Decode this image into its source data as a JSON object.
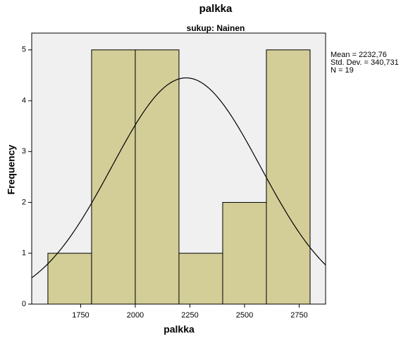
{
  "chart_data": {
    "type": "histogram",
    "title": "palkka",
    "subtitle": "sukup: Nainen",
    "x_label": "palkka",
    "y_label": "Frequency",
    "bins": [
      1600,
      1800,
      2000,
      2200,
      2400,
      2600,
      2800
    ],
    "values": [
      1,
      5,
      5,
      1,
      2,
      5
    ],
    "color": "#d3ce97",
    "xlim": [
      1526,
      2871
    ],
    "ylim": [
      0,
      5.33
    ],
    "xticks": [
      1750,
      2000,
      2250,
      2500,
      2750
    ],
    "yticks": [
      0,
      1,
      2,
      3,
      4,
      5
    ],
    "stats": {
      "mean": {
        "value": 2232.76,
        "label": "Mean = 2232,76"
      },
      "sd": {
        "value": 340.731,
        "label": "Std. Dev. = 340,731"
      },
      "n": {
        "value": 19,
        "label": "N = 19"
      }
    }
  }
}
